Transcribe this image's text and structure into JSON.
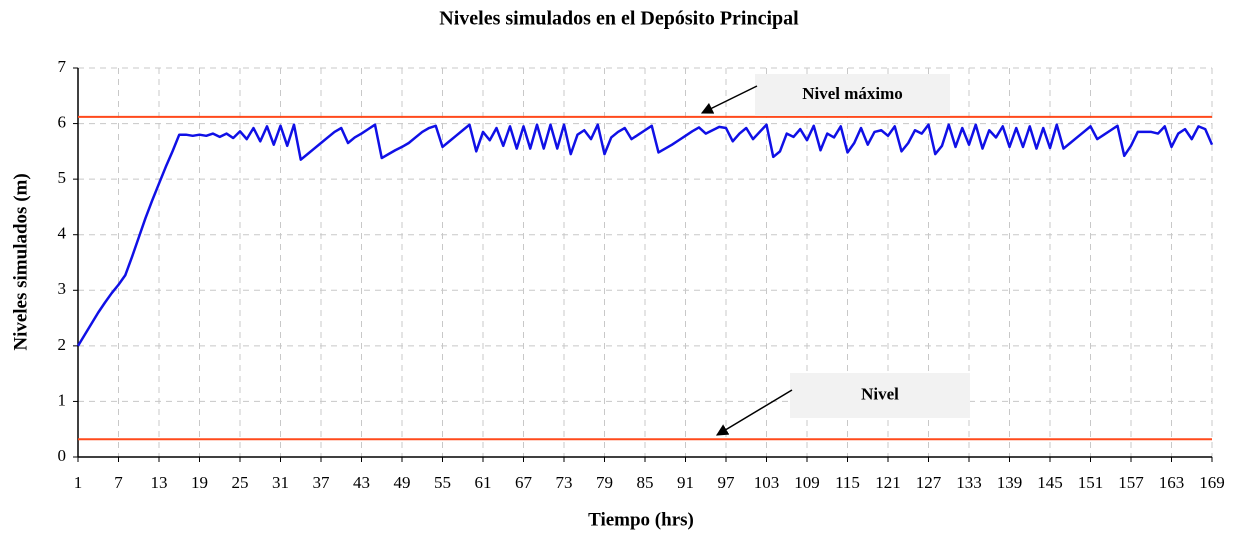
{
  "chart_data": {
    "type": "line",
    "title": "Niveles simulados en el Depósito Principal",
    "xlabel": "Tiempo (hrs)",
    "ylabel": "Niveles simulados (m)",
    "x": [
      1,
      2,
      3,
      4,
      5,
      6,
      7,
      8,
      9,
      10,
      11,
      12,
      13,
      14,
      15,
      16,
      17,
      18,
      19,
      20,
      21,
      22,
      23,
      24,
      25,
      26,
      27,
      28,
      29,
      30,
      31,
      32,
      33,
      34,
      35,
      36,
      37,
      38,
      39,
      40,
      41,
      42,
      43,
      44,
      45,
      46,
      47,
      48,
      49,
      50,
      51,
      52,
      53,
      54,
      55,
      56,
      57,
      58,
      59,
      60,
      61,
      62,
      63,
      64,
      65,
      66,
      67,
      68,
      69,
      70,
      71,
      72,
      73,
      74,
      75,
      76,
      77,
      78,
      79,
      80,
      81,
      82,
      83,
      84,
      85,
      86,
      87,
      88,
      89,
      90,
      91,
      92,
      93,
      94,
      95,
      96,
      97,
      98,
      99,
      100,
      101,
      102,
      103,
      104,
      105,
      106,
      107,
      108,
      109,
      110,
      111,
      112,
      113,
      114,
      115,
      116,
      117,
      118,
      119,
      120,
      121,
      122,
      123,
      124,
      125,
      126,
      127,
      128,
      129,
      130,
      131,
      132,
      133,
      134,
      135,
      136,
      137,
      138,
      139,
      140,
      141,
      142,
      143,
      144,
      145,
      146,
      147,
      148,
      149,
      150,
      151,
      152,
      153,
      154,
      155,
      156,
      157,
      158,
      159,
      160,
      161,
      162,
      163,
      164,
      165,
      166,
      167,
      168,
      169
    ],
    "series": [
      {
        "color": "#1010e6",
        "values": [
          2.0,
          2.2,
          2.4,
          2.6,
          2.78,
          2.95,
          3.1,
          3.27,
          3.6,
          3.95,
          4.3,
          4.62,
          4.92,
          5.22,
          5.5,
          5.8,
          5.8,
          5.78,
          5.8,
          5.78,
          5.82,
          5.76,
          5.82,
          5.74,
          5.86,
          5.72,
          5.92,
          5.68,
          5.95,
          5.62,
          5.96,
          5.6,
          5.98,
          5.35,
          5.45,
          5.55,
          5.65,
          5.75,
          5.85,
          5.92,
          5.65,
          5.75,
          5.82,
          5.9,
          5.98,
          5.38,
          5.45,
          5.52,
          5.58,
          5.65,
          5.75,
          5.85,
          5.92,
          5.96,
          5.58,
          5.68,
          5.78,
          5.88,
          5.98,
          5.5,
          5.85,
          5.7,
          5.92,
          5.6,
          5.95,
          5.55,
          5.95,
          5.55,
          5.98,
          5.55,
          5.98,
          5.55,
          5.98,
          5.45,
          5.8,
          5.88,
          5.72,
          5.98,
          5.45,
          5.75,
          5.85,
          5.92,
          5.72,
          5.8,
          5.88,
          5.96,
          5.48,
          5.55,
          5.62,
          5.7,
          5.78,
          5.86,
          5.93,
          5.82,
          5.88,
          5.94,
          5.92,
          5.68,
          5.82,
          5.92,
          5.72,
          5.85,
          5.98,
          5.4,
          5.5,
          5.82,
          5.76,
          5.9,
          5.7,
          5.96,
          5.52,
          5.82,
          5.75,
          5.95,
          5.48,
          5.65,
          5.92,
          5.62,
          5.85,
          5.88,
          5.78,
          5.95,
          5.5,
          5.65,
          5.88,
          5.82,
          5.98,
          5.45,
          5.6,
          5.98,
          5.58,
          5.92,
          5.62,
          5.98,
          5.55,
          5.88,
          5.75,
          5.95,
          5.58,
          5.92,
          5.58,
          5.95,
          5.55,
          5.92,
          5.56,
          5.98,
          5.55,
          5.65,
          5.75,
          5.85,
          5.95,
          5.72,
          5.8,
          5.88,
          5.96,
          5.42,
          5.6,
          5.85,
          5.85,
          5.85,
          5.82,
          5.95,
          5.58,
          5.82,
          5.9,
          5.72,
          5.95,
          5.9,
          5.62
        ]
      }
    ],
    "reference_lines": [
      {
        "label": "Nivel máximo",
        "value": 6.12,
        "color": "#ff4a1c"
      },
      {
        "label": "Nivel",
        "value": 0.32,
        "color": "#ff4a1c"
      }
    ],
    "xlim": [
      1,
      169
    ],
    "xticks": [
      1,
      7,
      13,
      19,
      25,
      31,
      37,
      43,
      49,
      55,
      61,
      67,
      73,
      79,
      85,
      91,
      97,
      103,
      109,
      115,
      121,
      127,
      133,
      139,
      145,
      151,
      157,
      163,
      169
    ],
    "ylim": [
      0,
      7
    ],
    "yticks": [
      0,
      1,
      2,
      3,
      4,
      5,
      6,
      7
    ],
    "grid": true
  }
}
